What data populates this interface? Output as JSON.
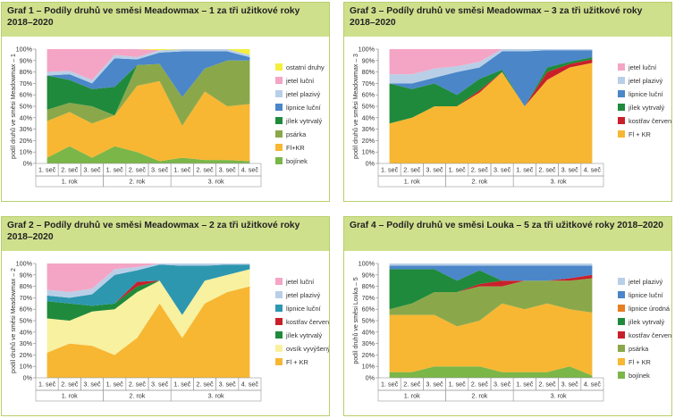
{
  "chart_data": [
    {
      "type": "area",
      "stacked": true,
      "title": "Graf 1 – Podíly druhů ve směsi Meadowmax – 1 za tři užitkové roky 2018–2020",
      "ylabel": "podíl druhů ve směsi Meadowmax – 1",
      "ylim": [
        0,
        100
      ],
      "yticks": [
        "0%",
        "10%",
        "20%",
        "30%",
        "40%",
        "50%",
        "60%",
        "70%",
        "80%",
        "90%",
        "100%"
      ],
      "categories": [
        "1. seč",
        "2. seč",
        "3. seč",
        "1. seč",
        "2. seč",
        "3. seč",
        "1. seč",
        "2. seč",
        "3. seč",
        "4. seč"
      ],
      "groups": [
        {
          "label": "1. rok",
          "span": 3
        },
        {
          "label": "2. rok",
          "span": 3
        },
        {
          "label": "3. rok",
          "span": 4
        }
      ],
      "series": [
        {
          "name": "bojínek",
          "color": "#7ab648",
          "values": [
            5,
            15,
            5,
            15,
            10,
            2,
            5,
            3,
            3,
            2
          ]
        },
        {
          "name": "Fl+KR",
          "color": "#f7b733",
          "values": [
            32,
            30,
            30,
            27,
            58,
            70,
            28,
            60,
            47,
            50
          ]
        },
        {
          "name": "psárka",
          "color": "#8aa84a",
          "values": [
            10,
            8,
            15,
            0,
            18,
            15,
            25,
            20,
            40,
            38
          ]
        },
        {
          "name": "jílek vytrvalý",
          "color": "#1f8a3c",
          "values": [
            30,
            20,
            15,
            25,
            0,
            0,
            0,
            0,
            0,
            0
          ]
        },
        {
          "name": "lipnice luční",
          "color": "#4a86c8",
          "values": [
            0,
            5,
            5,
            25,
            5,
            10,
            40,
            15,
            8,
            3
          ]
        },
        {
          "name": "jetel plazivý",
          "color": "#b9cfe7",
          "values": [
            3,
            3,
            3,
            3,
            2,
            2,
            2,
            2,
            2,
            2
          ]
        },
        {
          "name": "jetel luční",
          "color": "#f4a5c5",
          "values": [
            20,
            19,
            27,
            5,
            7,
            0,
            0,
            0,
            0,
            0
          ]
        },
        {
          "name": "ostatní druhy",
          "color": "#f4ee3e",
          "values": [
            0,
            0,
            0,
            0,
            0,
            1,
            0,
            0,
            0,
            5
          ]
        }
      ],
      "legend": "right"
    },
    {
      "type": "area",
      "stacked": true,
      "title": "Graf 3 – Podíly druhů ve směsi Meadowmax – 3 za tři užitkové roky 2018–2020",
      "ylabel": "podíl druhů ve směsi Meadowmax – 3",
      "ylim": [
        0,
        100
      ],
      "yticks": [
        "0%",
        "10%",
        "20%",
        "30%",
        "40%",
        "50%",
        "60%",
        "70%",
        "80%",
        "90%",
        "100%"
      ],
      "categories": [
        "1. seč",
        "2. seč",
        "3. seč",
        "1. seč",
        "2. seč",
        "3. seč",
        "1. seč",
        "2. seč",
        "3. seč",
        "4. seč"
      ],
      "groups": [
        {
          "label": "1. rok",
          "span": 3
        },
        {
          "label": "2. rok",
          "span": 3
        },
        {
          "label": "3. rok",
          "span": 4
        }
      ],
      "series": [
        {
          "name": "Fl + KR",
          "color": "#f7b733",
          "values": [
            35,
            40,
            50,
            50,
            62,
            80,
            50,
            73,
            84,
            88
          ]
        },
        {
          "name": "kostřav červená",
          "color": "#c8202a",
          "values": [
            0,
            0,
            0,
            0,
            2,
            0,
            0,
            7,
            3,
            3
          ]
        },
        {
          "name": "jílek vytrvalý",
          "color": "#1f8a3c",
          "values": [
            35,
            25,
            20,
            10,
            10,
            2,
            0,
            4,
            2,
            2
          ]
        },
        {
          "name": "lipnice luční",
          "color": "#4a86c8",
          "values": [
            0,
            5,
            5,
            20,
            10,
            16,
            48,
            15,
            10,
            6
          ]
        },
        {
          "name": "jetel plazivý",
          "color": "#b9cfe7",
          "values": [
            8,
            8,
            8,
            5,
            5,
            2,
            2,
            1,
            1,
            1
          ]
        },
        {
          "name": "jetel luční",
          "color": "#f4a5c5",
          "values": [
            22,
            22,
            17,
            15,
            11,
            0,
            0,
            0,
            0,
            0
          ]
        }
      ],
      "legend": "right"
    },
    {
      "type": "area",
      "stacked": true,
      "title": "Graf 2 – Podíly druhů ve směsi Meadowmax – 2 za tři užitkové roky 2018–2020",
      "ylabel": "podíl druhů ve směsi Meadowmax – 2",
      "ylim": [
        0,
        100
      ],
      "yticks": [
        "0%",
        "10%",
        "20%",
        "30%",
        "40%",
        "50%",
        "60%",
        "70%",
        "80%",
        "90%",
        "100%"
      ],
      "categories": [
        "1. seč",
        "2. seč",
        "3. seč",
        "1. seč",
        "2. seč",
        "3. seč",
        "1. seč",
        "2. seč",
        "3. seč",
        "4. seč"
      ],
      "groups": [
        {
          "label": "1. rok",
          "span": 3
        },
        {
          "label": "2. rok",
          "span": 3
        },
        {
          "label": "3. rok",
          "span": 4
        }
      ],
      "series": [
        {
          "name": "Fl + KR",
          "color": "#f7b733",
          "values": [
            22,
            30,
            28,
            20,
            35,
            65,
            35,
            65,
            75,
            80
          ]
        },
        {
          "name": "ovsík vyvýšený",
          "color": "#f8f1a0",
          "values": [
            30,
            20,
            30,
            40,
            40,
            20,
            20,
            20,
            15,
            15
          ]
        },
        {
          "name": "jílek vytrvalý",
          "color": "#1f8a3c",
          "values": [
            15,
            15,
            5,
            5,
            5,
            0,
            0,
            0,
            0,
            0
          ]
        },
        {
          "name": "kostřav červená",
          "color": "#c8202a",
          "values": [
            0,
            0,
            0,
            0,
            4,
            0,
            0,
            0,
            0,
            0
          ]
        },
        {
          "name": "lipnice luční",
          "color": "#2e97b0",
          "values": [
            5,
            5,
            10,
            25,
            10,
            14,
            43,
            13,
            9,
            4
          ]
        },
        {
          "name": "jetel plazivý",
          "color": "#b9cfe7",
          "values": [
            5,
            5,
            5,
            5,
            3,
            1,
            2,
            2,
            1,
            1
          ]
        },
        {
          "name": "jetel luční",
          "color": "#f4a5c5",
          "values": [
            23,
            25,
            22,
            5,
            3,
            0,
            0,
            0,
            0,
            0
          ]
        }
      ],
      "legend": "right"
    },
    {
      "type": "area",
      "stacked": true,
      "title": "Graf 4 – Podíly druhů ve směsi Louka – 5 za tři užitkové roky 2018–2020",
      "ylabel": "podíl druhů ve směsi Louka – 5",
      "ylim": [
        0,
        100
      ],
      "yticks": [
        "0%",
        "10%",
        "20%",
        "30%",
        "40%",
        "50%",
        "60%",
        "70%",
        "80%",
        "90%",
        "100%"
      ],
      "categories": [
        "1. seč",
        "2. seč",
        "3. seč",
        "1. seč",
        "2. seč",
        "3. seč",
        "1. seč",
        "2. seč",
        "3. seč",
        "4. seč"
      ],
      "groups": [
        {
          "label": "1. rok",
          "span": 3
        },
        {
          "label": "2. rok",
          "span": 3
        },
        {
          "label": "3. rok",
          "span": 4
        }
      ],
      "series": [
        {
          "name": "bojínek",
          "color": "#7ab648",
          "values": [
            5,
            5,
            10,
            10,
            10,
            5,
            5,
            5,
            10,
            2
          ]
        },
        {
          "name": "Fl + KR",
          "color": "#f7b733",
          "values": [
            50,
            50,
            45,
            35,
            40,
            60,
            55,
            60,
            50,
            55
          ]
        },
        {
          "name": "psárka",
          "color": "#8aa84a",
          "values": [
            5,
            10,
            20,
            30,
            30,
            15,
            25,
            20,
            25,
            30
          ]
        },
        {
          "name": "kostřav červená",
          "color": "#c8202a",
          "values": [
            0,
            0,
            0,
            0,
            2,
            5,
            0,
            0,
            2,
            3
          ]
        },
        {
          "name": "jílek vytrvalý",
          "color": "#1f8a3c",
          "values": [
            35,
            30,
            20,
            10,
            12,
            0,
            0,
            0,
            0,
            0
          ]
        },
        {
          "name": "lipnice úrodná",
          "color": "#e67e22",
          "values": [
            0,
            0,
            0,
            0,
            0,
            0,
            0,
            0,
            0,
            0
          ]
        },
        {
          "name": "lipnice luční",
          "color": "#4a86c8",
          "values": [
            3,
            3,
            3,
            13,
            4,
            13,
            13,
            13,
            11,
            8
          ]
        },
        {
          "name": "jetel plazivý",
          "color": "#b9cfe7",
          "values": [
            2,
            2,
            2,
            2,
            2,
            2,
            2,
            2,
            2,
            2
          ]
        }
      ],
      "legend": "right"
    }
  ]
}
